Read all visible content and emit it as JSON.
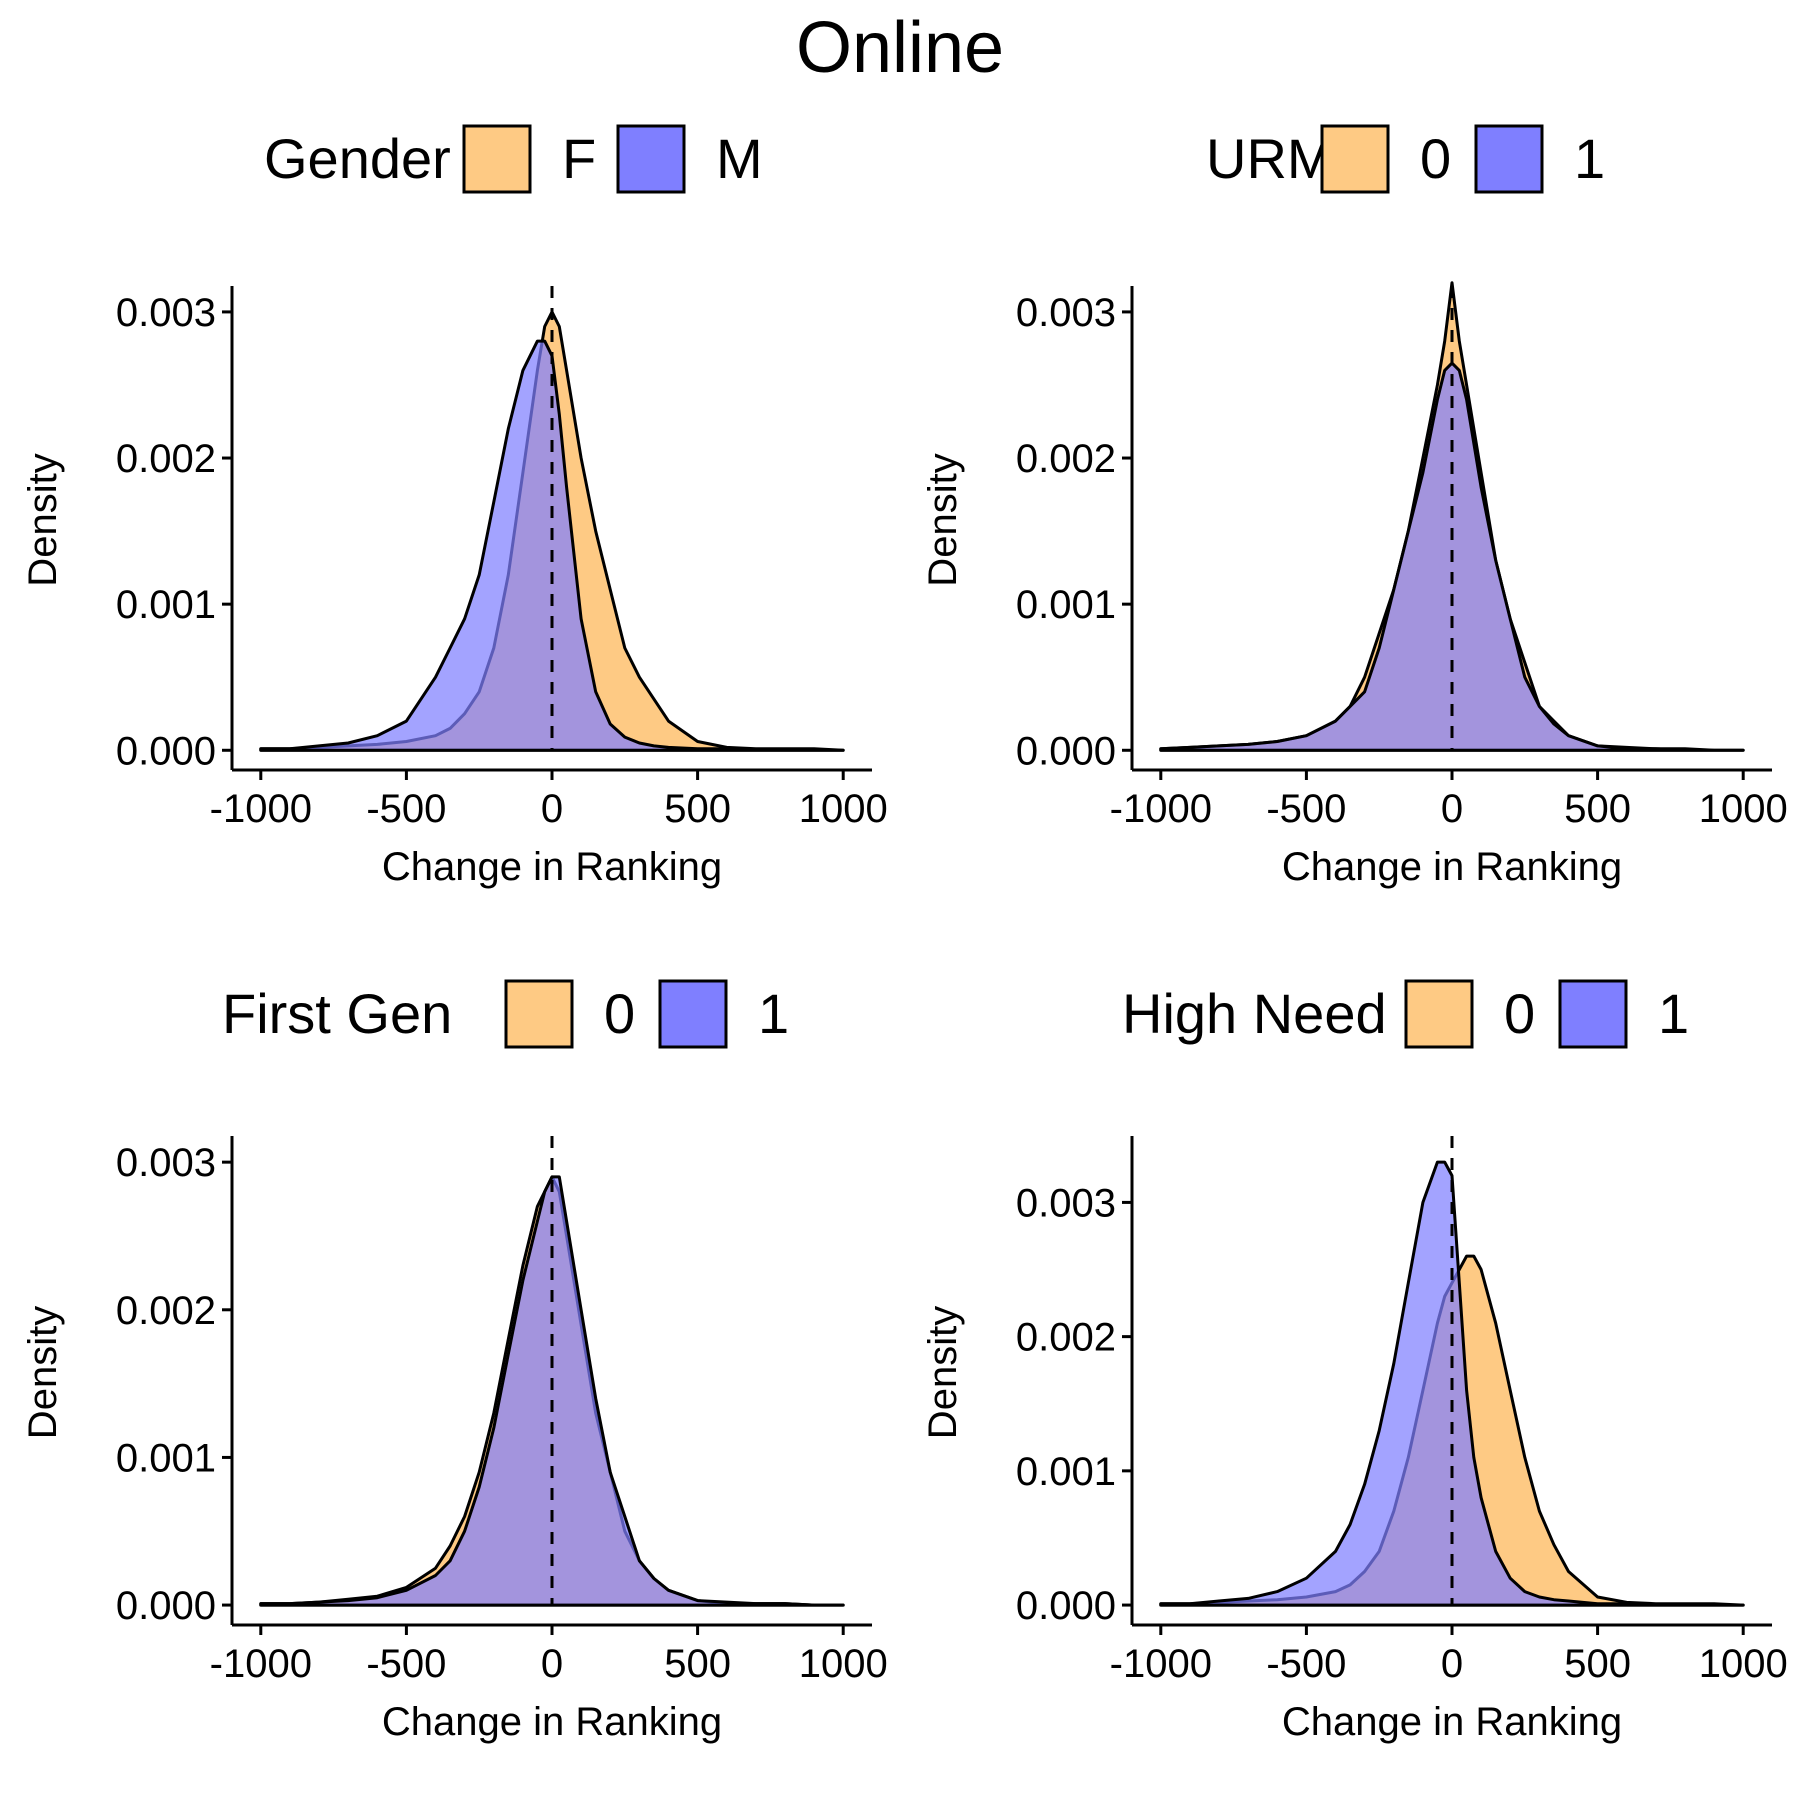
{
  "figure": {
    "title": "Online"
  },
  "colors": {
    "group_0": "#FECA84",
    "group_1": "#7F7FFF",
    "overlap": "#8066C0",
    "outline": "#000000"
  },
  "chart_data": [
    {
      "type": "area",
      "legend_title": "Gender",
      "legend_placement": "top",
      "xlabel": "Change in Ranking",
      "ylabel": "Density",
      "xlim": [
        -1000,
        1000
      ],
      "ylim": [
        0,
        0.003
      ],
      "x_ticks": [
        -1000,
        -500,
        0,
        500,
        1000
      ],
      "x_tick_labels": [
        "-1000",
        "-500",
        "0",
        "500",
        "1000"
      ],
      "y_ticks": [
        0,
        0.001,
        0.002,
        0.003
      ],
      "y_tick_labels": [
        "0.000",
        "0.001",
        "0.002",
        "0.003"
      ],
      "vline_x": 0,
      "grid": false,
      "x": [
        -1000,
        -900,
        -800,
        -700,
        -600,
        -500,
        -400,
        -350,
        -300,
        -250,
        -200,
        -150,
        -100,
        -50,
        -25,
        0,
        25,
        50,
        100,
        150,
        200,
        250,
        300,
        350,
        400,
        500,
        600,
        700,
        800,
        900,
        1000
      ],
      "series": [
        {
          "name": "F",
          "color_key": "group_0",
          "values": [
            1e-05,
            1e-05,
            2e-05,
            3e-05,
            4e-05,
            6e-05,
            0.0001,
            0.00015,
            0.00025,
            0.0004,
            0.0007,
            0.0012,
            0.0019,
            0.0026,
            0.0029,
            0.003,
            0.0029,
            0.0026,
            0.002,
            0.0015,
            0.0011,
            0.0007,
            0.0005,
            0.00035,
            0.0002,
            6e-05,
            2e-05,
            1e-05,
            1e-05,
            1e-05,
            0
          ]
        },
        {
          "name": "M",
          "color_key": "group_1",
          "values": [
            1e-05,
            1e-05,
            3e-05,
            5e-05,
            0.0001,
            0.0002,
            0.0005,
            0.0007,
            0.0009,
            0.0012,
            0.0017,
            0.0022,
            0.0026,
            0.0028,
            0.0028,
            0.0027,
            0.0023,
            0.0018,
            0.0009,
            0.0004,
            0.00018,
            9e-05,
            5e-05,
            3e-05,
            2e-05,
            1e-05,
            1e-05,
            0,
            0,
            0,
            0
          ]
        }
      ]
    },
    {
      "type": "area",
      "legend_title": "URM",
      "legend_placement": "top",
      "xlabel": "Change in Ranking",
      "ylabel": "Density",
      "xlim": [
        -1000,
        1000
      ],
      "ylim": [
        0,
        0.003
      ],
      "x_ticks": [
        -1000,
        -500,
        0,
        500,
        1000
      ],
      "x_tick_labels": [
        "-1000",
        "-500",
        "0",
        "500",
        "1000"
      ],
      "y_ticks": [
        0,
        0.001,
        0.002,
        0.003
      ],
      "y_tick_labels": [
        "0.000",
        "0.001",
        "0.002",
        "0.003"
      ],
      "vline_x": 0,
      "grid": false,
      "x": [
        -1000,
        -900,
        -800,
        -700,
        -600,
        -500,
        -400,
        -350,
        -300,
        -250,
        -200,
        -150,
        -100,
        -50,
        -25,
        0,
        25,
        50,
        100,
        150,
        200,
        250,
        300,
        350,
        400,
        500,
        600,
        700,
        800,
        900,
        1000
      ],
      "series": [
        {
          "name": "0",
          "color_key": "group_0",
          "values": [
            1e-05,
            2e-05,
            3e-05,
            4e-05,
            6e-05,
            0.0001,
            0.0002,
            0.0003,
            0.0005,
            0.0008,
            0.0011,
            0.0015,
            0.002,
            0.0025,
            0.0028,
            0.0032,
            0.0028,
            0.0025,
            0.0019,
            0.0013,
            0.0009,
            0.0006,
            0.0003,
            0.0002,
            0.0001,
            3e-05,
            2e-05,
            1e-05,
            1e-05,
            0,
            0
          ]
        },
        {
          "name": "1",
          "color_key": "group_1",
          "values": [
            1e-05,
            2e-05,
            3e-05,
            4e-05,
            6e-05,
            0.0001,
            0.0002,
            0.0003,
            0.0004,
            0.0007,
            0.0011,
            0.0015,
            0.0019,
            0.0024,
            0.0026,
            0.00265,
            0.0026,
            0.0024,
            0.0018,
            0.0013,
            0.0009,
            0.0005,
            0.0003,
            0.00018,
            0.0001,
            3e-05,
            1e-05,
            1e-05,
            0,
            0,
            0
          ]
        }
      ]
    },
    {
      "type": "area",
      "legend_title": "First Gen",
      "legend_placement": "top",
      "xlabel": "Change in Ranking",
      "ylabel": "Density",
      "xlim": [
        -1000,
        1000
      ],
      "ylim": [
        0,
        0.003
      ],
      "x_ticks": [
        -1000,
        -500,
        0,
        500,
        1000
      ],
      "x_tick_labels": [
        "-1000",
        "-500",
        "0",
        "500",
        "1000"
      ],
      "y_ticks": [
        0,
        0.001,
        0.002,
        0.003
      ],
      "y_tick_labels": [
        "0.000",
        "0.001",
        "0.002",
        "0.003"
      ],
      "vline_x": 0,
      "grid": false,
      "x": [
        -1000,
        -900,
        -800,
        -700,
        -600,
        -500,
        -400,
        -350,
        -300,
        -250,
        -200,
        -150,
        -100,
        -50,
        -25,
        0,
        25,
        50,
        100,
        150,
        200,
        250,
        300,
        350,
        400,
        500,
        600,
        700,
        800,
        900,
        1000
      ],
      "series": [
        {
          "name": "0",
          "color_key": "group_0",
          "values": [
            1e-05,
            1e-05,
            2e-05,
            4e-05,
            6e-05,
            0.00012,
            0.00025,
            0.0004,
            0.0006,
            0.0009,
            0.0013,
            0.0018,
            0.0023,
            0.0027,
            0.0028,
            0.0029,
            0.0028,
            0.0025,
            0.0019,
            0.0013,
            0.0009,
            0.0005,
            0.0003,
            0.00018,
            0.0001,
            3e-05,
            1e-05,
            1e-05,
            1e-05,
            0,
            0
          ]
        },
        {
          "name": "1",
          "color_key": "group_1",
          "values": [
            1e-05,
            1e-05,
            2e-05,
            3e-05,
            5e-05,
            0.0001,
            0.0002,
            0.0003,
            0.0005,
            0.0008,
            0.0012,
            0.0017,
            0.0022,
            0.0026,
            0.0028,
            0.0029,
            0.0029,
            0.0026,
            0.002,
            0.0014,
            0.0009,
            0.0006,
            0.0003,
            0.00018,
            0.0001,
            3e-05,
            2e-05,
            1e-05,
            1e-05,
            0,
            0
          ]
        }
      ]
    },
    {
      "type": "area",
      "legend_title": "High Need",
      "legend_placement": "top",
      "xlabel": "Change in Ranking",
      "ylabel": "Density",
      "xlim": [
        -1000,
        1000
      ],
      "ylim": [
        0,
        0.0033
      ],
      "x_ticks": [
        -1000,
        -500,
        0,
        500,
        1000
      ],
      "x_tick_labels": [
        "-1000",
        "-500",
        "0",
        "500",
        "1000"
      ],
      "y_ticks": [
        0,
        0.001,
        0.002,
        0.003
      ],
      "y_tick_labels": [
        "0.000",
        "0.001",
        "0.002",
        "0.003"
      ],
      "vline_x": 0,
      "grid": false,
      "x": [
        -1000,
        -900,
        -800,
        -700,
        -600,
        -500,
        -400,
        -350,
        -300,
        -250,
        -200,
        -150,
        -100,
        -50,
        -25,
        0,
        25,
        50,
        75,
        100,
        150,
        200,
        250,
        300,
        350,
        400,
        500,
        600,
        700,
        800,
        900,
        1000
      ],
      "series": [
        {
          "name": "0",
          "color_key": "group_0",
          "values": [
            1e-05,
            1e-05,
            2e-05,
            3e-05,
            4e-05,
            6e-05,
            0.0001,
            0.00015,
            0.00025,
            0.0004,
            0.0007,
            0.0011,
            0.0016,
            0.0021,
            0.0023,
            0.0024,
            0.0025,
            0.0026,
            0.0026,
            0.0025,
            0.0021,
            0.0016,
            0.0011,
            0.0007,
            0.00045,
            0.00025,
            6e-05,
            2e-05,
            1e-05,
            1e-05,
            1e-05,
            0
          ]
        },
        {
          "name": "1",
          "color_key": "group_1",
          "values": [
            1e-05,
            1e-05,
            3e-05,
            5e-05,
            0.0001,
            0.0002,
            0.0004,
            0.0006,
            0.0009,
            0.0013,
            0.0018,
            0.0024,
            0.003,
            0.0033,
            0.0033,
            0.0032,
            0.0024,
            0.0016,
            0.0011,
            0.0008,
            0.0004,
            0.0002,
            0.0001,
            6e-05,
            4e-05,
            3e-05,
            1e-05,
            1e-05,
            0,
            0,
            0,
            0
          ]
        }
      ]
    }
  ]
}
